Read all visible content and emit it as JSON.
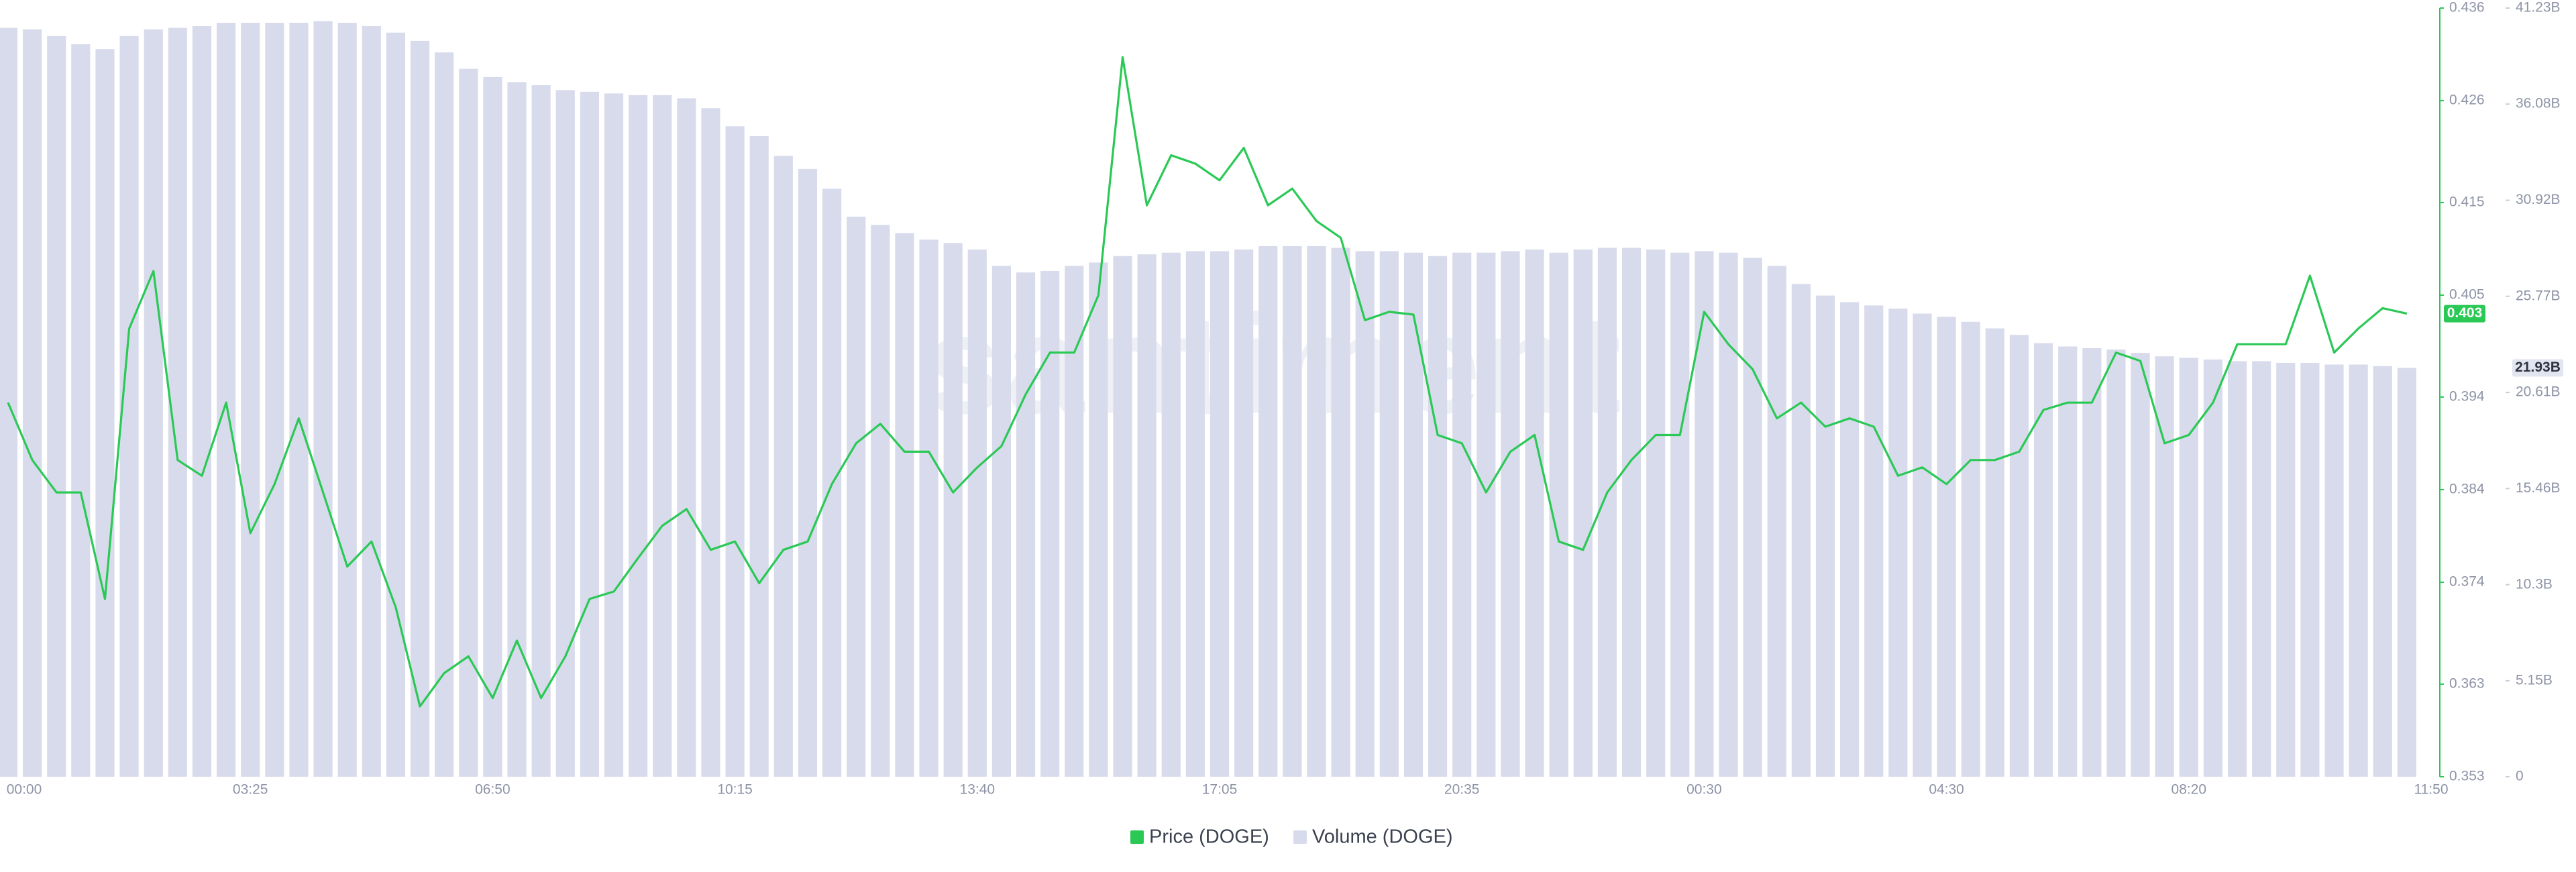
{
  "chart_data": {
    "type": "line",
    "watermark": "santiment",
    "categories": [
      "00:00",
      null,
      null,
      null,
      null,
      null,
      null,
      null,
      null,
      null,
      "03:25",
      null,
      null,
      null,
      null,
      null,
      null,
      null,
      null,
      null,
      "06:50",
      null,
      null,
      null,
      null,
      null,
      null,
      null,
      null,
      null,
      "10:15",
      null,
      null,
      null,
      null,
      null,
      null,
      null,
      null,
      null,
      "13:40",
      null,
      null,
      null,
      null,
      null,
      null,
      null,
      null,
      null,
      "17:05",
      null,
      null,
      null,
      null,
      null,
      null,
      null,
      null,
      null,
      "20:35",
      null,
      null,
      null,
      null,
      null,
      null,
      null,
      null,
      null,
      "00:30",
      null,
      null,
      null,
      null,
      null,
      null,
      null,
      null,
      null,
      "04:30",
      null,
      null,
      null,
      null,
      null,
      null,
      null,
      null,
      null,
      "08:20",
      null,
      null,
      null,
      null,
      null,
      null,
      null,
      null,
      null,
      "11:50"
    ],
    "series": [
      {
        "name": "Price (DOGE)",
        "type": "line",
        "color": "#2ac955",
        "values": [
          0.3934,
          0.3872,
          0.3837,
          0.3837,
          0.3722,
          0.4014,
          0.4076,
          0.3872,
          0.3855,
          0.3934,
          0.3793,
          0.3846,
          0.3917,
          0.3837,
          0.3757,
          0.3784,
          0.3713,
          0.3606,
          0.3642,
          0.366,
          0.3615,
          0.3677,
          0.3615,
          0.366,
          0.3722,
          0.373,
          0.3766,
          0.3801,
          0.3819,
          0.3775,
          0.3784,
          0.3739,
          0.3775,
          0.3784,
          0.3846,
          0.389,
          0.3911,
          0.3881,
          0.3881,
          0.3837,
          0.3864,
          0.3887,
          0.3943,
          0.3988,
          0.3988,
          0.405,
          0.4307,
          0.4147,
          0.4201,
          0.4192,
          0.4174,
          0.4209,
          0.4147,
          0.4165,
          0.413,
          0.4112,
          0.4023,
          0.4032,
          0.4029,
          0.3899,
          0.389,
          0.3837,
          0.3881,
          0.3899,
          0.3784,
          0.3775,
          0.3837,
          0.3872,
          0.3899,
          0.3899,
          0.4032,
          0.3997,
          0.397,
          0.3917,
          0.3934,
          0.3908,
          0.3917,
          0.3908,
          0.3855,
          0.3864,
          0.3846,
          0.3872,
          0.3872,
          0.3881,
          0.3926,
          0.3934,
          0.3934,
          0.3988,
          0.3979,
          0.389,
          0.3899,
          0.3934,
          0.3997,
          0.3997,
          0.3997,
          0.4071,
          0.3988,
          0.4014,
          0.4036,
          0.403,
          null
        ]
      },
      {
        "name": "Volume (DOGE)",
        "type": "bar",
        "axis": "y2",
        "color": "#d8dbeb",
        "values": [
          40.17,
          40.09,
          39.73,
          39.29,
          39.03,
          39.73,
          40.09,
          40.17,
          40.26,
          40.44,
          40.44,
          40.44,
          40.44,
          40.53,
          40.44,
          40.26,
          39.91,
          39.47,
          38.85,
          37.97,
          37.53,
          37.26,
          37.09,
          36.83,
          36.74,
          36.65,
          36.56,
          36.56,
          36.39,
          35.86,
          34.89,
          34.36,
          33.3,
          32.6,
          31.54,
          30.04,
          29.6,
          29.16,
          28.81,
          28.63,
          28.28,
          27.4,
          27.05,
          27.13,
          27.4,
          27.58,
          27.93,
          28.02,
          28.11,
          28.19,
          28.19,
          28.28,
          28.46,
          28.46,
          28.46,
          28.37,
          28.19,
          28.19,
          28.11,
          27.93,
          28.11,
          28.11,
          28.19,
          28.28,
          28.11,
          28.28,
          28.37,
          28.37,
          28.28,
          28.11,
          28.19,
          28.11,
          27.84,
          27.4,
          26.43,
          25.81,
          25.46,
          25.28,
          25.11,
          24.84,
          24.67,
          24.4,
          24.05,
          23.7,
          23.26,
          23.08,
          22.99,
          22.91,
          22.73,
          22.55,
          22.47,
          22.38,
          22.29,
          22.29,
          22.2,
          22.2,
          22.11,
          22.11,
          22.02,
          21.93,
          null
        ],
        "value_labels": [
          null,
          null,
          null,
          null,
          null,
          null,
          null,
          null,
          null,
          null,
          null,
          null,
          null,
          null,
          null,
          null,
          null,
          null,
          null,
          null,
          null,
          null,
          null,
          null,
          null,
          null,
          null,
          null,
          null,
          null,
          null,
          null,
          null,
          null,
          null,
          null,
          null,
          null,
          null,
          null,
          null,
          null,
          null,
          null,
          null,
          null,
          null,
          null,
          null,
          null,
          null,
          null,
          null,
          null,
          null,
          null,
          null,
          null,
          null,
          null,
          null,
          null,
          null,
          null,
          null,
          null,
          null,
          null,
          null,
          null,
          null,
          null,
          null,
          null,
          null,
          null,
          null,
          null,
          null,
          null,
          null,
          null,
          null,
          null,
          null,
          null,
          null,
          null,
          null,
          null,
          null,
          null,
          null,
          null,
          null,
          null,
          null,
          null,
          null,
          "21.93B",
          null
        ]
      }
    ],
    "ylim": [
      0.353,
      0.436
    ],
    "yticks": [
      0.353,
      0.363,
      0.374,
      0.384,
      0.394,
      0.405,
      0.415,
      0.426,
      0.436
    ],
    "y2lim": [
      0,
      41.23
    ],
    "y2ticks": [
      0,
      {
        "value": 5.15,
        "label": "5.15B"
      },
      {
        "value": 10.3,
        "label": "10.3B"
      },
      {
        "value": 15.46,
        "label": "15.46B"
      },
      {
        "value": 20.61,
        "label": "20.61B"
      },
      {
        "value": 25.77,
        "label": "25.77B"
      },
      {
        "value": 30.92,
        "label": "30.92B"
      },
      {
        "value": 36.08,
        "label": "36.08B"
      },
      {
        "value": 41.23,
        "label": "41.23B"
      }
    ],
    "grid": false,
    "legend": "bottom"
  }
}
